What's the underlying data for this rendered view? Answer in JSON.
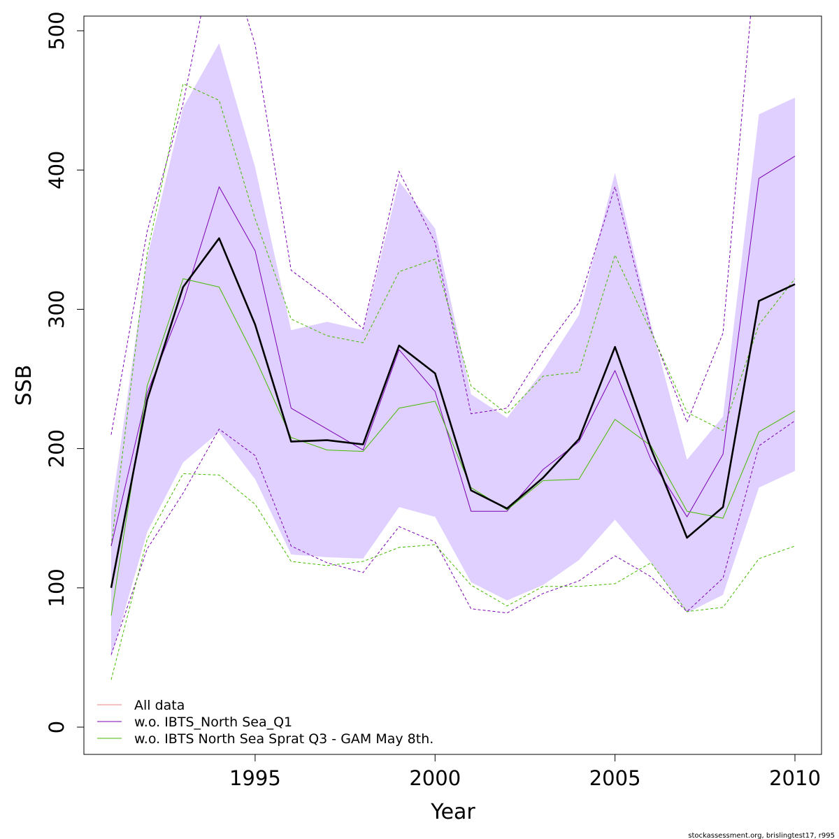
{
  "chart_data": {
    "type": "line",
    "xlabel": "Year",
    "ylabel": "SSB",
    "xlim": [
      1991,
      2010
    ],
    "ylim": [
      0,
      500
    ],
    "x_ticks": [
      1995,
      2000,
      2005,
      2010
    ],
    "y_ticks": [
      0,
      100,
      200,
      300,
      400,
      500
    ],
    "x": [
      1991,
      1992,
      1993,
      1994,
      1995,
      1996,
      1997,
      1998,
      1999,
      2000,
      2001,
      2002,
      2003,
      2004,
      2005,
      2006,
      2007,
      2008,
      2009,
      2010
    ],
    "band": {
      "fill_color": "#e0d0ff",
      "lower": [
        50,
        140,
        190,
        212,
        178,
        124,
        122,
        121,
        158,
        151,
        104,
        91,
        102,
        120,
        149,
        118,
        82,
        95,
        172,
        184
      ],
      "upper": [
        155,
        337,
        445,
        491,
        402,
        285,
        291,
        285,
        392,
        358,
        239,
        222,
        256,
        296,
        398,
        289,
        192,
        223,
        440,
        452
      ]
    },
    "series": [
      {
        "name": "All data",
        "color": "#000000",
        "legend_color": "#f08080",
        "values": [
          100,
          235,
          316,
          351,
          289,
          205,
          206,
          203,
          274,
          254,
          170,
          157,
          179,
          207,
          273,
          200,
          136,
          158,
          306,
          318
        ],
        "lower": [
          50,
          140,
          190,
          212,
          178,
          124,
          122,
          121,
          158,
          151,
          104,
          91,
          102,
          120,
          149,
          118,
          82,
          95,
          172,
          184
        ],
        "upper": [
          155,
          337,
          445,
          491,
          402,
          285,
          291,
          285,
          392,
          358,
          239,
          222,
          256,
          296,
          398,
          289,
          192,
          223,
          440,
          452
        ]
      },
      {
        "name": "w.o. IBTS_North Sea_Q1",
        "color": "#7b00b4",
        "values": [
          130,
          240,
          305,
          388,
          342,
          229,
          214,
          199,
          271,
          241,
          155,
          155,
          185,
          205,
          256,
          192,
          151,
          196,
          394,
          410
        ],
        "lower": [
          52,
          128,
          168,
          214,
          195,
          130,
          118,
          111,
          144,
          133,
          85,
          82,
          96,
          105,
          123,
          108,
          83,
          107,
          202,
          220
        ],
        "upper": [
          210,
          356,
          448,
          575,
          490,
          328,
          309,
          286,
          399,
          348,
          225,
          229,
          270,
          305,
          388,
          285,
          219,
          283,
          580,
          600
        ]
      },
      {
        "name": "w.o. IBTS North Sea Sprat Q3 - GAM May 8th.",
        "color": "#44bb00",
        "values": [
          80,
          245,
          322,
          316,
          265,
          208,
          199,
          198,
          229,
          234,
          172,
          156,
          177,
          178,
          221,
          202,
          155,
          150,
          212,
          227
        ],
        "lower": [
          34,
          135,
          182,
          181,
          160,
          119,
          116,
          119,
          129,
          131,
          102,
          87,
          101,
          101,
          103,
          118,
          83,
          86,
          121,
          130
        ],
        "upper": [
          130,
          340,
          462,
          450,
          365,
          293,
          281,
          276,
          327,
          336,
          245,
          225,
          252,
          255,
          339,
          284,
          226,
          213,
          289,
          322
        ]
      }
    ],
    "legend_position": "bottom-left"
  },
  "footer": "stockassessment.org, brislingtest17, r995"
}
